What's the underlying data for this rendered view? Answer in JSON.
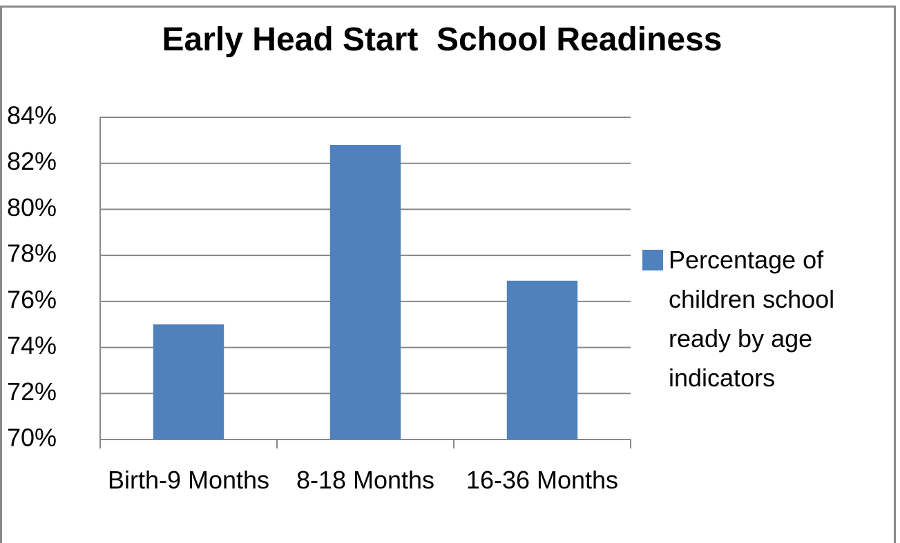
{
  "chart_data": {
    "type": "bar",
    "title": "Early Head Start  School Readiness",
    "categories": [
      "Birth-9 Months",
      "8-18 Months",
      "16-36 Months"
    ],
    "series": [
      {
        "name": "Percentage of children school ready by age indicators",
        "color": "#4f81bd",
        "values": [
          75,
          82.8,
          76.9
        ]
      }
    ],
    "ylim": [
      70,
      84
    ],
    "yticks": [
      {
        "value": 70,
        "label": "70%"
      },
      {
        "value": 72,
        "label": "72%"
      },
      {
        "value": 74,
        "label": "74%"
      },
      {
        "value": 76,
        "label": "76%"
      },
      {
        "value": 78,
        "label": "78%"
      },
      {
        "value": 80,
        "label": "80%"
      },
      {
        "value": 82,
        "label": "82%"
      },
      {
        "value": 84,
        "label": "84%"
      }
    ],
    "grid": true,
    "legend": "right"
  }
}
